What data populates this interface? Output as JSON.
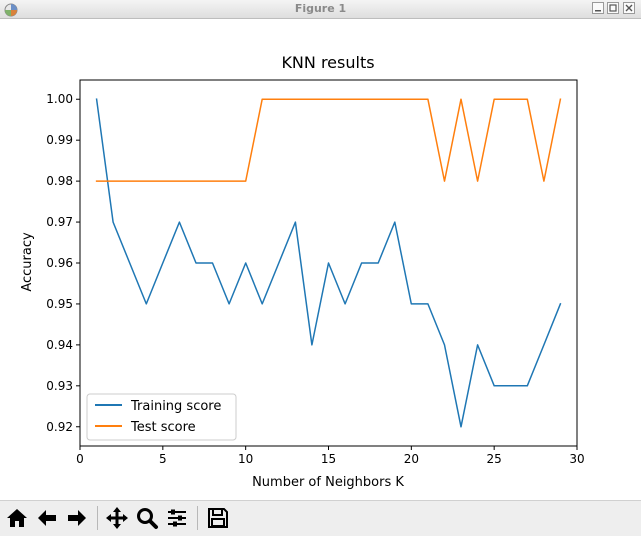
{
  "window": {
    "title": "Figure 1"
  },
  "toolbar": {
    "buttons": [
      {
        "name": "home-button",
        "icon": "home-icon"
      },
      {
        "name": "back-button",
        "icon": "arrow-left-icon"
      },
      {
        "name": "forward-button",
        "icon": "arrow-right-icon"
      },
      {
        "name": "pan-button",
        "icon": "move-icon"
      },
      {
        "name": "zoom-button",
        "icon": "magnifier-icon"
      },
      {
        "name": "configure-subplots-button",
        "icon": "sliders-icon"
      },
      {
        "name": "save-button",
        "icon": "floppy-disk-icon"
      }
    ]
  },
  "chart_data": {
    "type": "line",
    "title": "KNN results",
    "xlabel": "Number of Neighbors K",
    "ylabel": "Accuracy",
    "xlim": [
      0,
      30
    ],
    "ylim": [
      0.9153,
      1.0047
    ],
    "xticks": [
      0,
      5,
      10,
      15,
      20,
      25,
      30
    ],
    "yticks": [
      0.92,
      0.93,
      0.94,
      0.95,
      0.96,
      0.97,
      0.98,
      0.99,
      1.0
    ],
    "ytick_labels": [
      "0.92",
      "0.93",
      "0.94",
      "0.95",
      "0.96",
      "0.97",
      "0.98",
      "0.99",
      "1.00"
    ],
    "grid": false,
    "legend_position": "lower-left",
    "x": [
      1,
      2,
      3,
      4,
      5,
      6,
      7,
      8,
      9,
      10,
      11,
      12,
      13,
      14,
      15,
      16,
      17,
      18,
      19,
      20,
      21,
      22,
      23,
      24,
      25,
      26,
      27,
      28,
      29
    ],
    "series": [
      {
        "name": "Training score",
        "color": "#1f77b4",
        "values": [
          1.0,
          0.97,
          0.96,
          0.95,
          0.96,
          0.97,
          0.96,
          0.96,
          0.95,
          0.96,
          0.95,
          0.96,
          0.97,
          0.94,
          0.96,
          0.95,
          0.96,
          0.96,
          0.97,
          0.95,
          0.95,
          0.94,
          0.92,
          0.94,
          0.93,
          0.93,
          0.93,
          0.94,
          0.95
        ]
      },
      {
        "name": "Test score",
        "color": "#ff7f0e",
        "values": [
          0.98,
          0.98,
          0.98,
          0.98,
          0.98,
          0.98,
          0.98,
          0.98,
          0.98,
          0.98,
          1.0,
          1.0,
          1.0,
          1.0,
          1.0,
          1.0,
          1.0,
          1.0,
          1.0,
          1.0,
          1.0,
          0.98,
          1.0,
          0.98,
          1.0,
          1.0,
          1.0,
          0.98,
          1.0
        ]
      }
    ]
  }
}
